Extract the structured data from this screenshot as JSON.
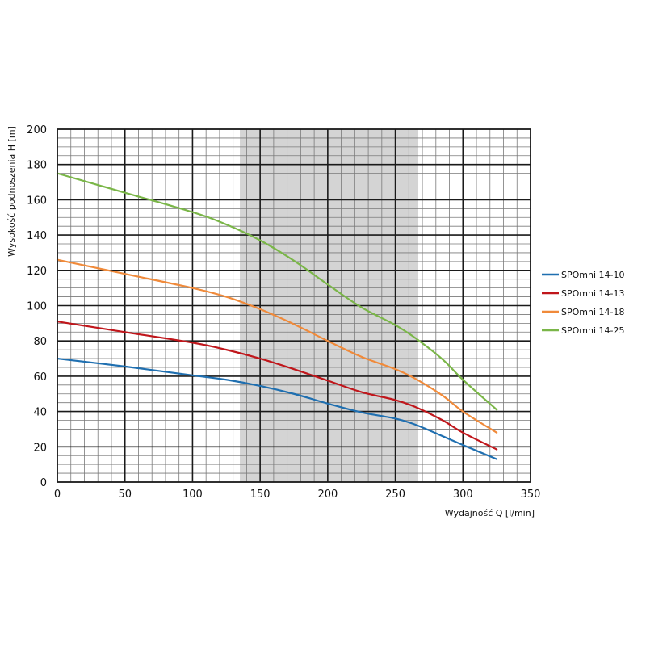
{
  "chart_data": {
    "type": "line",
    "xlabel": "Wydajność Q [l/min]",
    "ylabel": "Wysokość podnoszenia H [m]",
    "xlim": [
      0,
      350
    ],
    "ylim": [
      0,
      200
    ],
    "x_ticks": [
      "0",
      "50",
      "100",
      "150",
      "200",
      "250",
      "300",
      "350"
    ],
    "y_ticks": [
      "0",
      "20",
      "40",
      "60",
      "80",
      "100",
      "120",
      "140",
      "160",
      "180",
      "200"
    ],
    "x_major_step": 50,
    "y_major_step": 20,
    "x_minor_step": 10,
    "y_minor_step": 5,
    "grid": true,
    "shaded_region": [
      135,
      267
    ],
    "legend_position": "right",
    "series": [
      {
        "name": "SPOmni 14-10",
        "color": "#1f6fb0",
        "points": [
          [
            0,
            70
          ],
          [
            50,
            65.5
          ],
          [
            100,
            60.5
          ],
          [
            125,
            58
          ],
          [
            150,
            54.5
          ],
          [
            175,
            50
          ],
          [
            200,
            44.5
          ],
          [
            225,
            39.5
          ],
          [
            250,
            36
          ],
          [
            265,
            32.5
          ],
          [
            285,
            26
          ],
          [
            300,
            21
          ],
          [
            325,
            13
          ]
        ]
      },
      {
        "name": "SPOmni 14-13",
        "color": "#c0161b",
        "points": [
          [
            0,
            91
          ],
          [
            50,
            85
          ],
          [
            100,
            79
          ],
          [
            125,
            75
          ],
          [
            150,
            70
          ],
          [
            175,
            64
          ],
          [
            200,
            57.5
          ],
          [
            225,
            51
          ],
          [
            250,
            46.5
          ],
          [
            265,
            42.5
          ],
          [
            285,
            35
          ],
          [
            300,
            28
          ],
          [
            325,
            18.5
          ]
        ]
      },
      {
        "name": "SPOmni 14-18",
        "color": "#f08a3a",
        "points": [
          [
            0,
            126
          ],
          [
            50,
            118
          ],
          [
            100,
            110
          ],
          [
            125,
            105
          ],
          [
            150,
            98
          ],
          [
            175,
            89.5
          ],
          [
            200,
            80
          ],
          [
            225,
            71
          ],
          [
            250,
            64
          ],
          [
            265,
            58.5
          ],
          [
            285,
            49
          ],
          [
            300,
            40
          ],
          [
            325,
            28
          ]
        ]
      },
      {
        "name": "SPOmni 14-25",
        "color": "#7ab648",
        "points": [
          [
            0,
            175
          ],
          [
            50,
            164
          ],
          [
            100,
            153
          ],
          [
            125,
            146
          ],
          [
            150,
            137
          ],
          [
            175,
            125.5
          ],
          [
            200,
            112
          ],
          [
            225,
            99
          ],
          [
            250,
            89
          ],
          [
            265,
            81.5
          ],
          [
            285,
            69.5
          ],
          [
            300,
            58
          ],
          [
            325,
            41
          ]
        ]
      }
    ]
  }
}
